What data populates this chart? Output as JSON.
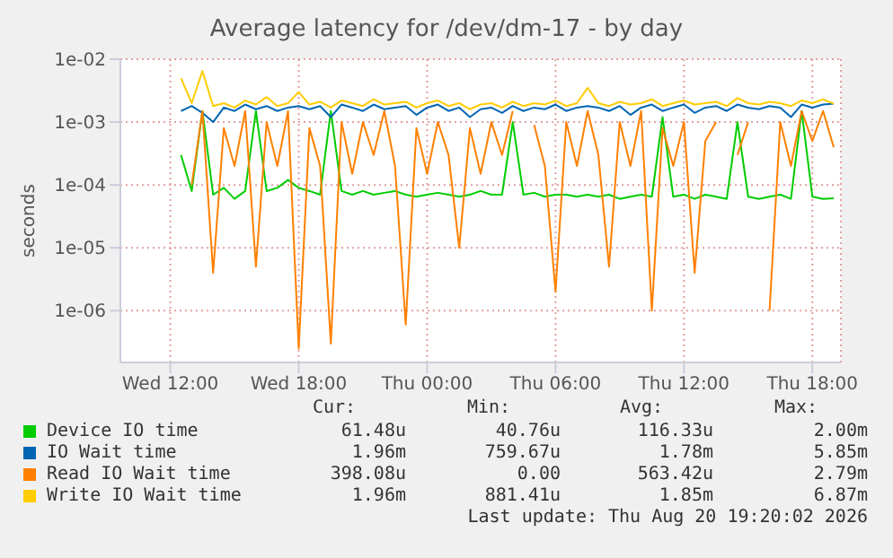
{
  "chart_data": {
    "type": "line",
    "title": "Average latency for /dev/dm-17 - by day",
    "ylabel": "seconds",
    "log": true,
    "grid": true,
    "legend": "bottom",
    "marker": "none",
    "line_style": "solid",
    "x": [
      "2026-08-19T12:30",
      "2026-08-19T13:00",
      "2026-08-19T13:30",
      "2026-08-19T14:00",
      "2026-08-19T14:30",
      "2026-08-19T15:00",
      "2026-08-19T15:30",
      "2026-08-19T16:00",
      "2026-08-19T16:30",
      "2026-08-19T17:00",
      "2026-08-19T17:30",
      "2026-08-19T18:00",
      "2026-08-19T18:30",
      "2026-08-19T19:00",
      "2026-08-19T19:30",
      "2026-08-19T20:00",
      "2026-08-19T20:30",
      "2026-08-19T21:00",
      "2026-08-19T21:30",
      "2026-08-19T22:00",
      "2026-08-19T22:30",
      "2026-08-19T23:00",
      "2026-08-19T23:30",
      "2026-08-20T00:00",
      "2026-08-20T00:30",
      "2026-08-20T01:00",
      "2026-08-20T01:30",
      "2026-08-20T02:00",
      "2026-08-20T02:30",
      "2026-08-20T03:00",
      "2026-08-20T03:30",
      "2026-08-20T04:00",
      "2026-08-20T04:30",
      "2026-08-20T05:00",
      "2026-08-20T05:30",
      "2026-08-20T06:00",
      "2026-08-20T06:30",
      "2026-08-20T07:00",
      "2026-08-20T07:30",
      "2026-08-20T08:00",
      "2026-08-20T08:30",
      "2026-08-20T09:00",
      "2026-08-20T09:30",
      "2026-08-20T10:00",
      "2026-08-20T10:30",
      "2026-08-20T11:00",
      "2026-08-20T11:30",
      "2026-08-20T12:00",
      "2026-08-20T12:30",
      "2026-08-20T13:00",
      "2026-08-20T13:30",
      "2026-08-20T14:00",
      "2026-08-20T14:30",
      "2026-08-20T15:00",
      "2026-08-20T15:30",
      "2026-08-20T16:00",
      "2026-08-20T16:30",
      "2026-08-20T17:00",
      "2026-08-20T17:30",
      "2026-08-20T18:00",
      "2026-08-20T18:30",
      "2026-08-20T19:00"
    ],
    "xlim": [
      "2026-08-19T09:40",
      "2026-08-20T19:20"
    ],
    "xticks": [
      {
        "value": "2026-08-19T12:00",
        "label": "Wed 12:00"
      },
      {
        "value": "2026-08-19T18:00",
        "label": "Wed 18:00"
      },
      {
        "value": "2026-08-20T00:00",
        "label": "Thu 00:00"
      },
      {
        "value": "2026-08-20T06:00",
        "label": "Thu 06:00"
      },
      {
        "value": "2026-08-20T12:00",
        "label": "Thu 12:00"
      },
      {
        "value": "2026-08-20T18:00",
        "label": "Thu 18:00"
      }
    ],
    "ylim": [
      1.5e-07,
      0.01
    ],
    "yticks": [
      {
        "value": 0.01,
        "label": "1e-02"
      },
      {
        "value": 0.001,
        "label": "1e-03"
      },
      {
        "value": 0.0001,
        "label": "1e-04"
      },
      {
        "value": 1e-05,
        "label": "1e-05"
      },
      {
        "value": 1e-06,
        "label": "1e-06"
      }
    ],
    "series": [
      {
        "name": "Device IO time",
        "color": "#00cc00",
        "values": [
          0.0003,
          8e-05,
          0.0015,
          7e-05,
          9e-05,
          6e-05,
          8e-05,
          0.0015,
          8e-05,
          9e-05,
          0.00012,
          9e-05,
          8e-05,
          7e-05,
          0.0015,
          8e-05,
          7e-05,
          8e-05,
          7e-05,
          7.5e-05,
          8e-05,
          7e-05,
          6.5e-05,
          7e-05,
          7.5e-05,
          7e-05,
          6.5e-05,
          7e-05,
          8e-05,
          7e-05,
          7e-05,
          0.001,
          7e-05,
          7.5e-05,
          6.5e-05,
          7e-05,
          7e-05,
          6.5e-05,
          7e-05,
          6.5e-05,
          7e-05,
          6e-05,
          6.5e-05,
          7e-05,
          6.5e-05,
          0.0012,
          6.5e-05,
          7e-05,
          6e-05,
          7e-05,
          6.5e-05,
          6e-05,
          0.001,
          6.5e-05,
          6e-05,
          6.5e-05,
          7e-05,
          6e-05,
          0.0015,
          6.5e-05,
          6e-05,
          6.148e-05
        ]
      },
      {
        "name": "IO Wait time",
        "color": "#0066b3",
        "values": [
          0.0015,
          0.0018,
          0.0014,
          0.001,
          0.0017,
          0.0015,
          0.0019,
          0.0016,
          0.0018,
          0.0015,
          0.0017,
          0.0018,
          0.0016,
          0.0018,
          0.0012,
          0.0019,
          0.0017,
          0.0015,
          0.0019,
          0.0016,
          0.0017,
          0.0018,
          0.0013,
          0.0017,
          0.0019,
          0.0015,
          0.0017,
          0.0012,
          0.0016,
          0.0017,
          0.0014,
          0.0018,
          0.0015,
          0.0017,
          0.0016,
          0.0019,
          0.0015,
          0.0017,
          0.0018,
          0.0017,
          0.0015,
          0.0018,
          0.0013,
          0.0017,
          0.0019,
          0.0015,
          0.0017,
          0.0019,
          0.0014,
          0.0017,
          0.0018,
          0.0015,
          0.0019,
          0.0017,
          0.0016,
          0.0018,
          0.0017,
          0.0012,
          0.0019,
          0.0017,
          0.0019,
          0.00196
        ]
      },
      {
        "name": "Read IO Wait time",
        "color": "#ff8000",
        "values": [
          null,
          0.0001,
          0.0015,
          4e-06,
          0.0008,
          0.0002,
          0.0015,
          5e-06,
          0.001,
          0.0002,
          0.0015,
          2.5e-07,
          0.0008,
          0.0002,
          3e-07,
          0.001,
          0.00015,
          0.001,
          0.0003,
          0.0015,
          0.0002,
          6e-07,
          0.0008,
          0.00015,
          0.001,
          0.0003,
          1e-05,
          0.0008,
          0.00015,
          0.001,
          0.0003,
          0.0015,
          null,
          0.0009,
          0.0002,
          2e-06,
          0.001,
          0.0002,
          0.0015,
          0.0003,
          5e-06,
          0.001,
          0.0002,
          0.0015,
          1e-06,
          0.0008,
          0.0002,
          0.001,
          4e-06,
          0.0005,
          0.001,
          null,
          0.0003,
          0.001,
          null,
          1e-06,
          0.001,
          0.0002,
          0.0015,
          0.0005,
          0.0015,
          0.000398
        ]
      },
      {
        "name": "Write IO Wait time",
        "color": "#ffcc00",
        "values": [
          0.005,
          0.002,
          0.0065,
          0.0018,
          0.002,
          0.0017,
          0.0022,
          0.0019,
          0.0025,
          0.0018,
          0.002,
          0.003,
          0.0019,
          0.0021,
          0.0017,
          0.0022,
          0.002,
          0.0018,
          0.0023,
          0.0019,
          0.002,
          0.0021,
          0.0017,
          0.002,
          0.0022,
          0.0018,
          0.002,
          0.0016,
          0.0019,
          0.002,
          0.0017,
          0.0021,
          0.0018,
          0.002,
          0.0019,
          0.0022,
          0.0018,
          0.002,
          0.0035,
          0.002,
          0.0018,
          0.0021,
          0.0019,
          0.002,
          0.0023,
          0.0018,
          0.002,
          0.0022,
          0.0019,
          0.002,
          0.0021,
          0.0018,
          0.0024,
          0.002,
          0.0019,
          0.0021,
          0.002,
          0.0018,
          0.0022,
          0.002,
          0.0023,
          0.00196
        ]
      }
    ],
    "annotations": [
      "Cur:",
      "Min:",
      "Avg:",
      "Max:",
      "61.48u",
      "40.76u",
      "116.33u",
      "2.00m",
      "1.96m",
      "759.67u",
      "1.78m",
      "5.85m",
      "398.08u",
      "0.00",
      "563.42u",
      "2.79m",
      "1.96m",
      "881.41u",
      "1.85m",
      "6.87m",
      "Last update: Thu Aug 20 19:20:02 2026"
    ]
  }
}
